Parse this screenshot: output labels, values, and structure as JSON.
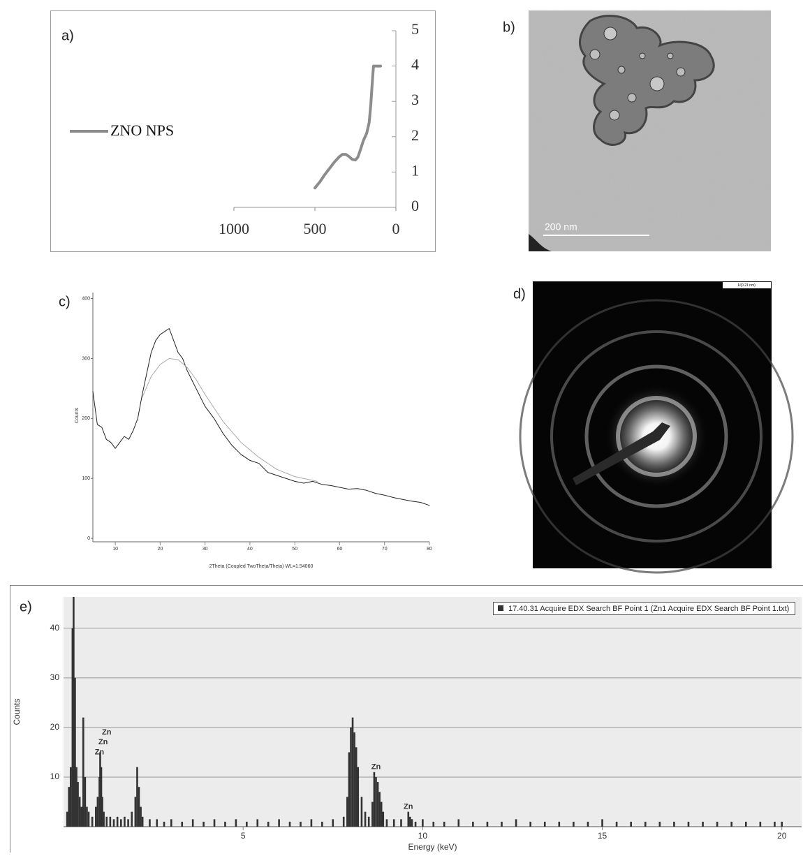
{
  "chart_data": [
    {
      "type": "line",
      "label": "a)",
      "series": [
        {
          "name": "ZNO NPS",
          "color": "#8c8c8c",
          "x": [
            500,
            470,
            440,
            410,
            380,
            350,
            330,
            310,
            290,
            270,
            250,
            235,
            220,
            200,
            180,
            165,
            155,
            148,
            142,
            138,
            120,
            95
          ],
          "values": [
            0.55,
            0.72,
            0.92,
            1.1,
            1.28,
            1.43,
            1.5,
            1.5,
            1.44,
            1.36,
            1.34,
            1.42,
            1.62,
            1.9,
            2.1,
            2.4,
            2.9,
            3.4,
            3.8,
            4.0,
            4.0,
            4.0
          ]
        }
      ],
      "xlim": [
        1000,
        0
      ],
      "xticks": [
        1000,
        500,
        0
      ],
      "ylim": [
        0,
        5
      ],
      "yticks": [
        0,
        1,
        2,
        3,
        4,
        5
      ],
      "legend": "left"
    },
    {
      "type": "image",
      "label": "b)",
      "scale_label": "200 nm"
    },
    {
      "type": "line",
      "label": "c)",
      "xlabel": "2Theta (Coupled TwoTheta/Theta) WL=1.54060",
      "ylabel": "Counts",
      "series": [
        {
          "color": "#222222",
          "x": [
            5,
            6,
            7,
            8,
            9,
            10,
            11,
            12,
            13,
            14,
            15,
            16,
            17,
            18,
            19,
            20,
            21,
            22,
            23,
            24,
            25,
            26,
            27,
            28,
            29,
            30,
            32,
            34,
            36,
            38,
            40,
            42,
            44,
            46,
            48,
            50,
            52,
            54,
            56,
            58,
            60,
            62,
            64,
            66,
            68,
            70,
            72,
            74,
            76,
            78,
            80
          ],
          "values": [
            245,
            190,
            185,
            165,
            160,
            150,
            160,
            170,
            165,
            180,
            200,
            240,
            275,
            310,
            330,
            340,
            345,
            350,
            330,
            310,
            300,
            280,
            265,
            250,
            235,
            220,
            200,
            175,
            155,
            140,
            130,
            125,
            110,
            105,
            100,
            95,
            92,
            95,
            90,
            88,
            85,
            82,
            83,
            80,
            75,
            72,
            68,
            65,
            62,
            60,
            55
          ]
        },
        {
          "color": "#aaaaaa",
          "x": [
            16,
            18,
            20,
            22,
            24,
            26,
            28,
            30,
            34,
            38,
            42,
            46,
            50,
            55
          ],
          "values": [
            235,
            270,
            290,
            300,
            298,
            285,
            265,
            240,
            195,
            160,
            135,
            115,
            103,
            95
          ]
        }
      ],
      "xlim": [
        5,
        80
      ],
      "xticks": [
        10,
        20,
        30,
        40,
        50,
        60,
        70,
        80
      ],
      "ylim": [
        0,
        410
      ],
      "yticks": [
        0,
        100,
        200,
        300,
        400
      ]
    },
    {
      "type": "image",
      "label": "d)",
      "scale_label": "1/(0.21 nm)"
    },
    {
      "type": "bar",
      "label": "e)",
      "xlabel": "Energy (keV)",
      "ylabel": "Counts",
      "grid": true,
      "series": [
        {
          "name": "17.40.31 Acquire EDX Search BF Point 1 (Zn1 Acquire EDX Search BF Point 1.txt)",
          "color": "#333333",
          "x": [
            0.1,
            0.15,
            0.2,
            0.25,
            0.28,
            0.32,
            0.36,
            0.4,
            0.45,
            0.5,
            0.55,
            0.6,
            0.65,
            0.7,
            0.8,
            0.9,
            0.95,
            1.0,
            1.02,
            1.05,
            1.08,
            1.12,
            1.2,
            1.3,
            1.4,
            1.5,
            1.6,
            1.7,
            1.8,
            1.9,
            2.0,
            2.05,
            2.1,
            2.15,
            2.2,
            2.4,
            2.6,
            2.8,
            3.0,
            3.3,
            3.6,
            3.9,
            4.2,
            4.5,
            4.8,
            5.1,
            5.4,
            5.7,
            6.0,
            6.3,
            6.6,
            6.9,
            7.2,
            7.5,
            7.8,
            7.9,
            7.95,
            8.0,
            8.05,
            8.1,
            8.15,
            8.2,
            8.3,
            8.4,
            8.5,
            8.6,
            8.65,
            8.7,
            8.75,
            8.8,
            8.85,
            8.9,
            9.0,
            9.2,
            9.4,
            9.6,
            9.65,
            9.7,
            9.8,
            10.0,
            10.3,
            10.6,
            11.0,
            11.4,
            11.8,
            12.2,
            12.6,
            13.0,
            13.4,
            13.8,
            14.2,
            14.6,
            15.0,
            15.4,
            15.8,
            16.2,
            16.6,
            17.0,
            17.4,
            17.8,
            18.2,
            18.6,
            19.0,
            19.4,
            19.8,
            20.0
          ],
          "values": [
            3,
            8,
            12,
            40,
            46.3,
            30,
            12,
            9,
            6,
            4,
            22,
            10,
            4,
            3,
            2,
            4,
            6,
            10,
            15,
            12,
            6,
            3,
            2,
            2,
            1.5,
            2,
            1.5,
            2,
            1.5,
            3,
            6,
            12,
            8,
            4,
            2,
            1.5,
            1.5,
            1,
            1.5,
            1,
            1.5,
            1,
            1.5,
            1,
            1.5,
            1,
            1.5,
            1,
            1.5,
            1,
            1,
            1.5,
            1,
            1.5,
            2,
            6,
            15,
            20,
            22,
            19,
            16,
            12,
            6,
            3,
            2,
            5,
            11,
            10,
            9,
            7,
            5,
            3,
            1.5,
            1.5,
            1.5,
            3,
            2,
            1.5,
            1,
            1.5,
            1,
            1,
            1.5,
            1,
            1,
            1,
            1.5,
            1,
            1,
            1,
            1,
            1,
            1.5,
            1,
            1,
            1,
            1,
            1,
            1,
            1,
            1,
            1,
            1,
            1,
            1,
            1
          ]
        }
      ],
      "annotations": [
        {
          "text": "Zn",
          "x": 1.0,
          "y": 15
        },
        {
          "text": "Zn",
          "x": 1.1,
          "y": 17
        },
        {
          "text": "Zn",
          "x": 1.2,
          "y": 19
        },
        {
          "text": "Zn",
          "x": 8.7,
          "y": 12
        },
        {
          "text": "Zn",
          "x": 9.6,
          "y": 4
        }
      ],
      "xlim": [
        0,
        20.55
      ],
      "xticks": [
        5,
        10,
        15,
        20
      ],
      "ylim": [
        0,
        46.3
      ],
      "yticks": [
        10,
        20,
        30,
        40
      ]
    }
  ]
}
